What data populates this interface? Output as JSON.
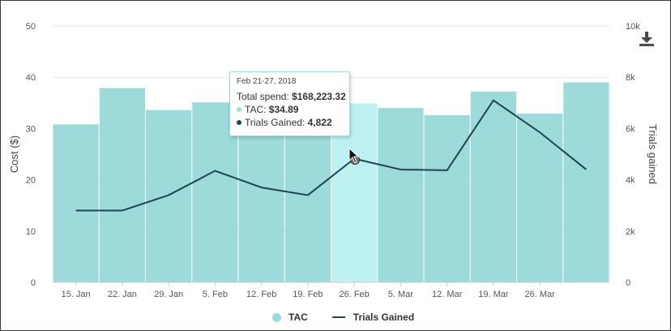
{
  "colors": {
    "bar": "#9ddada",
    "bar_highlight": "#bdf1f1",
    "line": "#1d4450",
    "grid": "#e4e4e4"
  },
  "chart_data": {
    "type": "bar",
    "categories": [
      "15. Jan",
      "22. Jan",
      "29. Jan",
      "5. Feb",
      "12. Feb",
      "19. Feb",
      "26. Feb",
      "5. Mar",
      "12. Mar",
      "19. Mar",
      "26. Mar",
      ""
    ],
    "series": [
      {
        "name": "TAC",
        "type": "bar",
        "axis": "left",
        "values": [
          30.8,
          37.9,
          33.6,
          35.1,
          35.2,
          34.9,
          34.89,
          34.0,
          32.6,
          37.2,
          32.9,
          39.0
        ]
      },
      {
        "name": "Trials Gained",
        "type": "line",
        "axis": "right",
        "values": [
          2800,
          2800,
          3400,
          4350,
          3700,
          3400,
          4822,
          4400,
          4370,
          7100,
          5850,
          4400
        ]
      }
    ],
    "highlight_index": 6,
    "ylabel": "Cost ($)",
    "y2label": "Trials gained",
    "ylim": [
      0,
      50
    ],
    "y2lim": [
      0,
      10000
    ],
    "yticks": [
      "0",
      "10",
      "20",
      "30",
      "40",
      "50"
    ],
    "y2ticks": [
      "0",
      "2k",
      "4k",
      "6k",
      "8k",
      "10k"
    ],
    "xtick_labels": [
      "15. Jan",
      "22. Jan",
      "29. Jan",
      "5. Feb",
      "12. Feb",
      "19. Feb",
      "26. Feb",
      "5. Mar",
      "12. Mar",
      "19. Mar",
      "26. Mar"
    ],
    "legend": {
      "placement": "bottom",
      "items": [
        "TAC",
        "Trials Gained"
      ]
    },
    "grid": true
  },
  "tooltip": {
    "date": "Feb 21-27, 2018",
    "total_label": "Total spend: ",
    "total_value": "$168,223.32",
    "tac_label": "TAC: ",
    "tac_value": "$34.89",
    "trials_label": "Trials Gained: ",
    "trials_value": "4,822"
  },
  "legend": {
    "tac": "TAC",
    "trials": "Trials Gained"
  },
  "icons": {
    "download": "download-icon",
    "cursor": "hand-cursor-icon"
  }
}
